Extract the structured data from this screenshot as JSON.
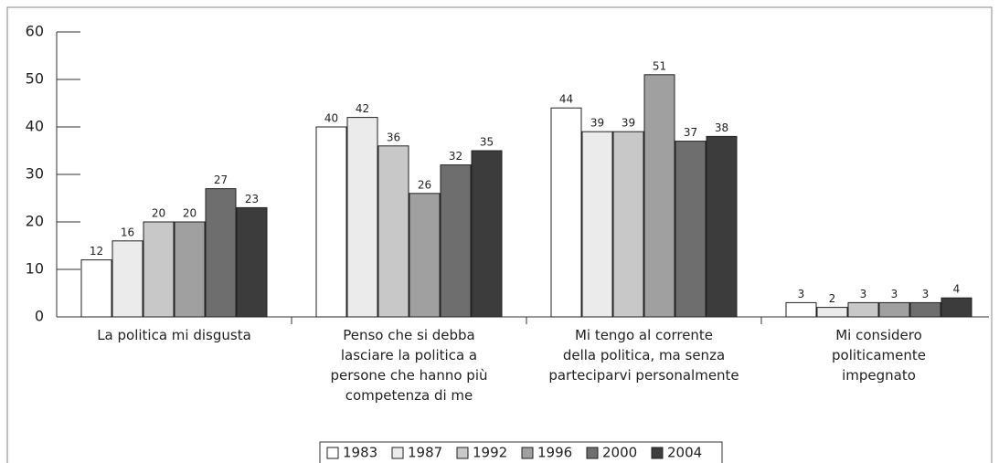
{
  "chart_data": {
    "type": "bar",
    "categories": [
      "La politica mi disgusta",
      "Penso che si debba\nlasciare la politica a\npersone che hanno più\ncompetenza di me",
      "Mi tengo al corrente\ndella politica, ma senza\nparteciparvi personalmente",
      "Mi considero\npoliticamente\nimpegnato"
    ],
    "series": [
      {
        "name": "1983",
        "color": "#ffffff",
        "values": [
          12,
          40,
          44,
          3
        ]
      },
      {
        "name": "1987",
        "color": "#ebebeb",
        "values": [
          16,
          42,
          39,
          2
        ]
      },
      {
        "name": "1992",
        "color": "#c8c8c8",
        "values": [
          20,
          36,
          39,
          3
        ]
      },
      {
        "name": "1996",
        "color": "#a0a0a0",
        "values": [
          20,
          26,
          51,
          3
        ]
      },
      {
        "name": "2000",
        "color": "#6e6e6e",
        "values": [
          27,
          32,
          37,
          3
        ]
      },
      {
        "name": "2004",
        "color": "#3c3c3c",
        "values": [
          23,
          35,
          38,
          4
        ]
      }
    ],
    "ylim": [
      0,
      60
    ],
    "yticks": [
      0,
      10,
      20,
      30,
      40,
      50,
      60
    ]
  }
}
